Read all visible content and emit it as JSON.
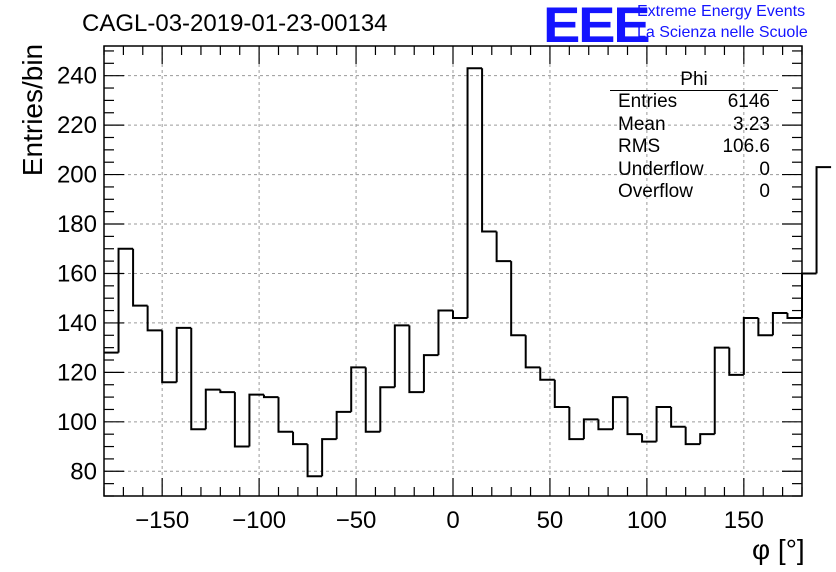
{
  "chart_data": {
    "type": "histogram",
    "title": "CAGL-03-2019-01-23-00134",
    "xlabel": "φ [°]",
    "ylabel": "Entries/bin",
    "xlim": [
      -180,
      180
    ],
    "ylim": [
      70,
      252
    ],
    "xticks": [
      -150,
      -100,
      -50,
      0,
      50,
      100,
      150
    ],
    "xtick_labels": [
      "−150",
      "−100",
      "−50",
      "0",
      "50",
      "100",
      "150"
    ],
    "yticks": [
      80,
      100,
      120,
      140,
      160,
      180,
      200,
      220,
      240
    ],
    "yticks_labels": [
      "80",
      "100",
      "120",
      "140",
      "160",
      "180",
      "200",
      "220",
      "240"
    ],
    "grid": true,
    "bin_edges_start": -180,
    "bin_width": 7.5,
    "values": [
      128,
      170,
      147,
      137,
      116,
      138,
      97,
      113,
      112,
      90,
      111,
      110,
      96,
      91,
      78,
      93,
      104,
      122,
      96,
      114,
      139,
      112,
      127,
      145,
      142,
      243,
      177,
      165,
      135,
      122,
      117,
      106,
      93,
      101,
      97,
      110,
      95,
      92,
      106,
      98,
      91,
      95,
      130,
      119,
      142,
      135,
      144,
      142,
      160,
      203
    ]
  },
  "stats_box": {
    "title": "Phi",
    "rows": [
      {
        "label": "Entries",
        "value": "6146"
      },
      {
        "label": "Mean",
        "value": "3.23"
      },
      {
        "label": "RMS",
        "value": "106.6"
      },
      {
        "label": "Underflow",
        "value": "0"
      },
      {
        "label": "Overflow",
        "value": "0"
      }
    ]
  },
  "logo": {
    "mark": "EEE",
    "line1": "Extreme Energy Events",
    "line2": "La Scienza nelle Scuole"
  },
  "colors": {
    "logo": "#1414ff",
    "grid": "#9a9a9a",
    "line": "#000000"
  }
}
